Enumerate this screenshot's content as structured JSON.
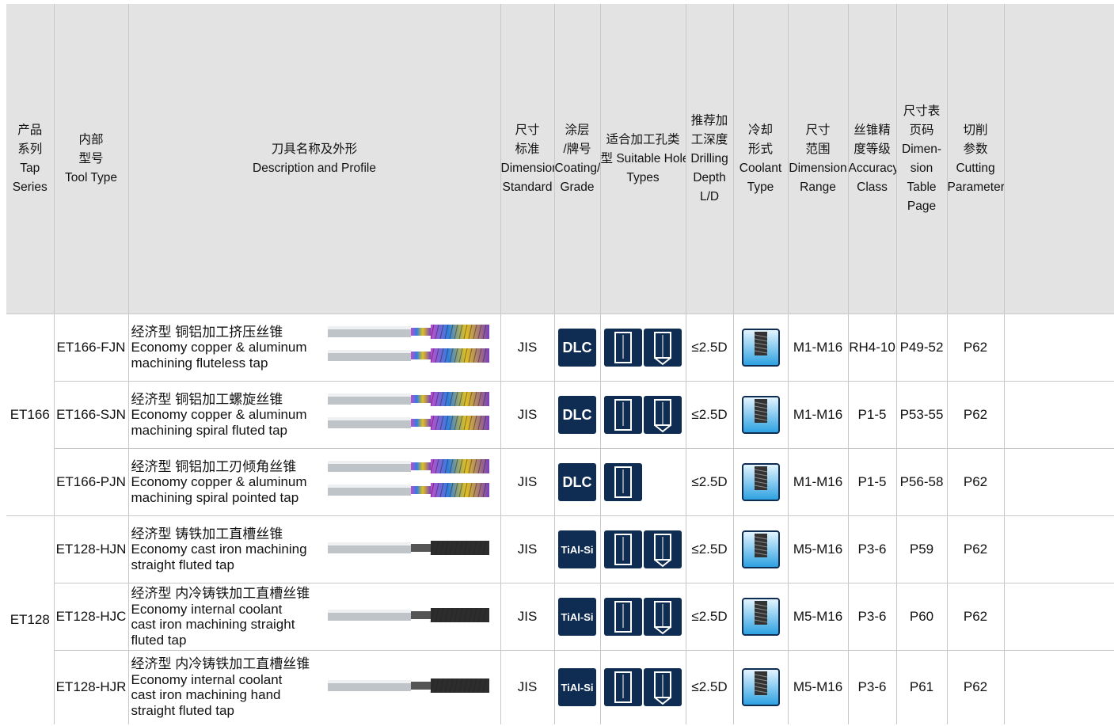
{
  "header": {
    "columns": [
      [
        "产品",
        "系列",
        "Tap",
        "Series"
      ],
      [
        "内部",
        "型号",
        "Tool Type"
      ],
      [
        "刀具名称及外形",
        "Description and Profile"
      ],
      [
        "尺寸",
        "标准",
        "Dimension",
        "Standard"
      ],
      [
        "涂层",
        "/牌号",
        "Coating/",
        "Grade"
      ],
      [
        "适合加工孔类",
        "型 Suitable Hole",
        "Types"
      ],
      [
        "推荐加",
        "工深度",
        "Drilling",
        "Depth",
        "L/D"
      ],
      [
        "冷却",
        "形式",
        "Coolant",
        "Type"
      ],
      [
        "尺寸",
        "范围",
        "Dimension",
        "Range"
      ],
      [
        "丝锥精",
        "度等级",
        "Accuracy",
        "Class"
      ],
      [
        "尺寸表",
        "页码",
        "Dimen-",
        "sion",
        "Table",
        "Page"
      ],
      [
        "切削",
        "参数",
        "Cutting",
        "Parameters"
      ]
    ]
  },
  "groups": [
    {
      "series": "ET166",
      "rows": [
        {
          "tool_type": "ET166-FJN",
          "description": [
            "经济型 铜铝加工挤压丝锥",
            "Economy copper & aluminum",
            "machining fluteless tap"
          ],
          "standard": "JIS",
          "coating": "DLC",
          "depth": "≤2.5D",
          "range": "M1-M16",
          "accuracy": "RH4-10",
          "page": "P49-52",
          "parameters": "P62"
        },
        {
          "tool_type": "ET166-SJN",
          "description": [
            "经济型 铜铝加工螺旋丝锥",
            "Economy copper & aluminum",
            "machining spiral fluted tap"
          ],
          "standard": "JIS",
          "coating": "DLC",
          "depth": "≤2.5D",
          "range": "M1-M16",
          "accuracy": "P1-5",
          "page": "P53-55",
          "parameters": "P62"
        },
        {
          "tool_type": "ET166-PJN",
          "description": [
            "经济型 铜铝加工刃倾角丝锥",
            "Economy copper & aluminum",
            "machining spiral pointed tap"
          ],
          "standard": "JIS",
          "coating": "DLC",
          "depth": "≤2.5D",
          "range": "M1-M16",
          "accuracy": "P1-5",
          "page": "P56-58",
          "parameters": "P62"
        }
      ]
    },
    {
      "series": "ET128",
      "rows": [
        {
          "tool_type": "ET128-HJN",
          "description": [
            "经济型 铸铁加工直槽丝锥",
            "Economy cast iron machining",
            "straight fluted tap"
          ],
          "standard": "JIS",
          "coating": "TiAl-Si",
          "depth": "≤2.5D",
          "range": "M5-M16",
          "accuracy": "P3-6",
          "page": "P59",
          "parameters": "P62"
        },
        {
          "tool_type": "ET128-HJC",
          "description": [
            "经济型 内冷铸铁加工直槽丝锥",
            "Economy internal coolant",
            "cast iron machining straight",
            "fluted tap"
          ],
          "standard": "JIS",
          "coating": "TiAl-Si",
          "depth": "≤2.5D",
          "range": "M5-M16",
          "accuracy": "P3-6",
          "page": "P60",
          "parameters": "P62"
        },
        {
          "tool_type": "ET128-HJR",
          "description": [
            "经济型 内冷铸铁加工直槽丝锥",
            "Economy internal coolant",
            "cast iron machining hand",
            "straight fluted tap"
          ],
          "standard": "JIS",
          "coating": "TiAl-Si",
          "depth": "≤2.5D",
          "range": "M5-M16",
          "accuracy": "P3-6",
          "page": "P61",
          "parameters": "P62"
        }
      ]
    }
  ]
}
